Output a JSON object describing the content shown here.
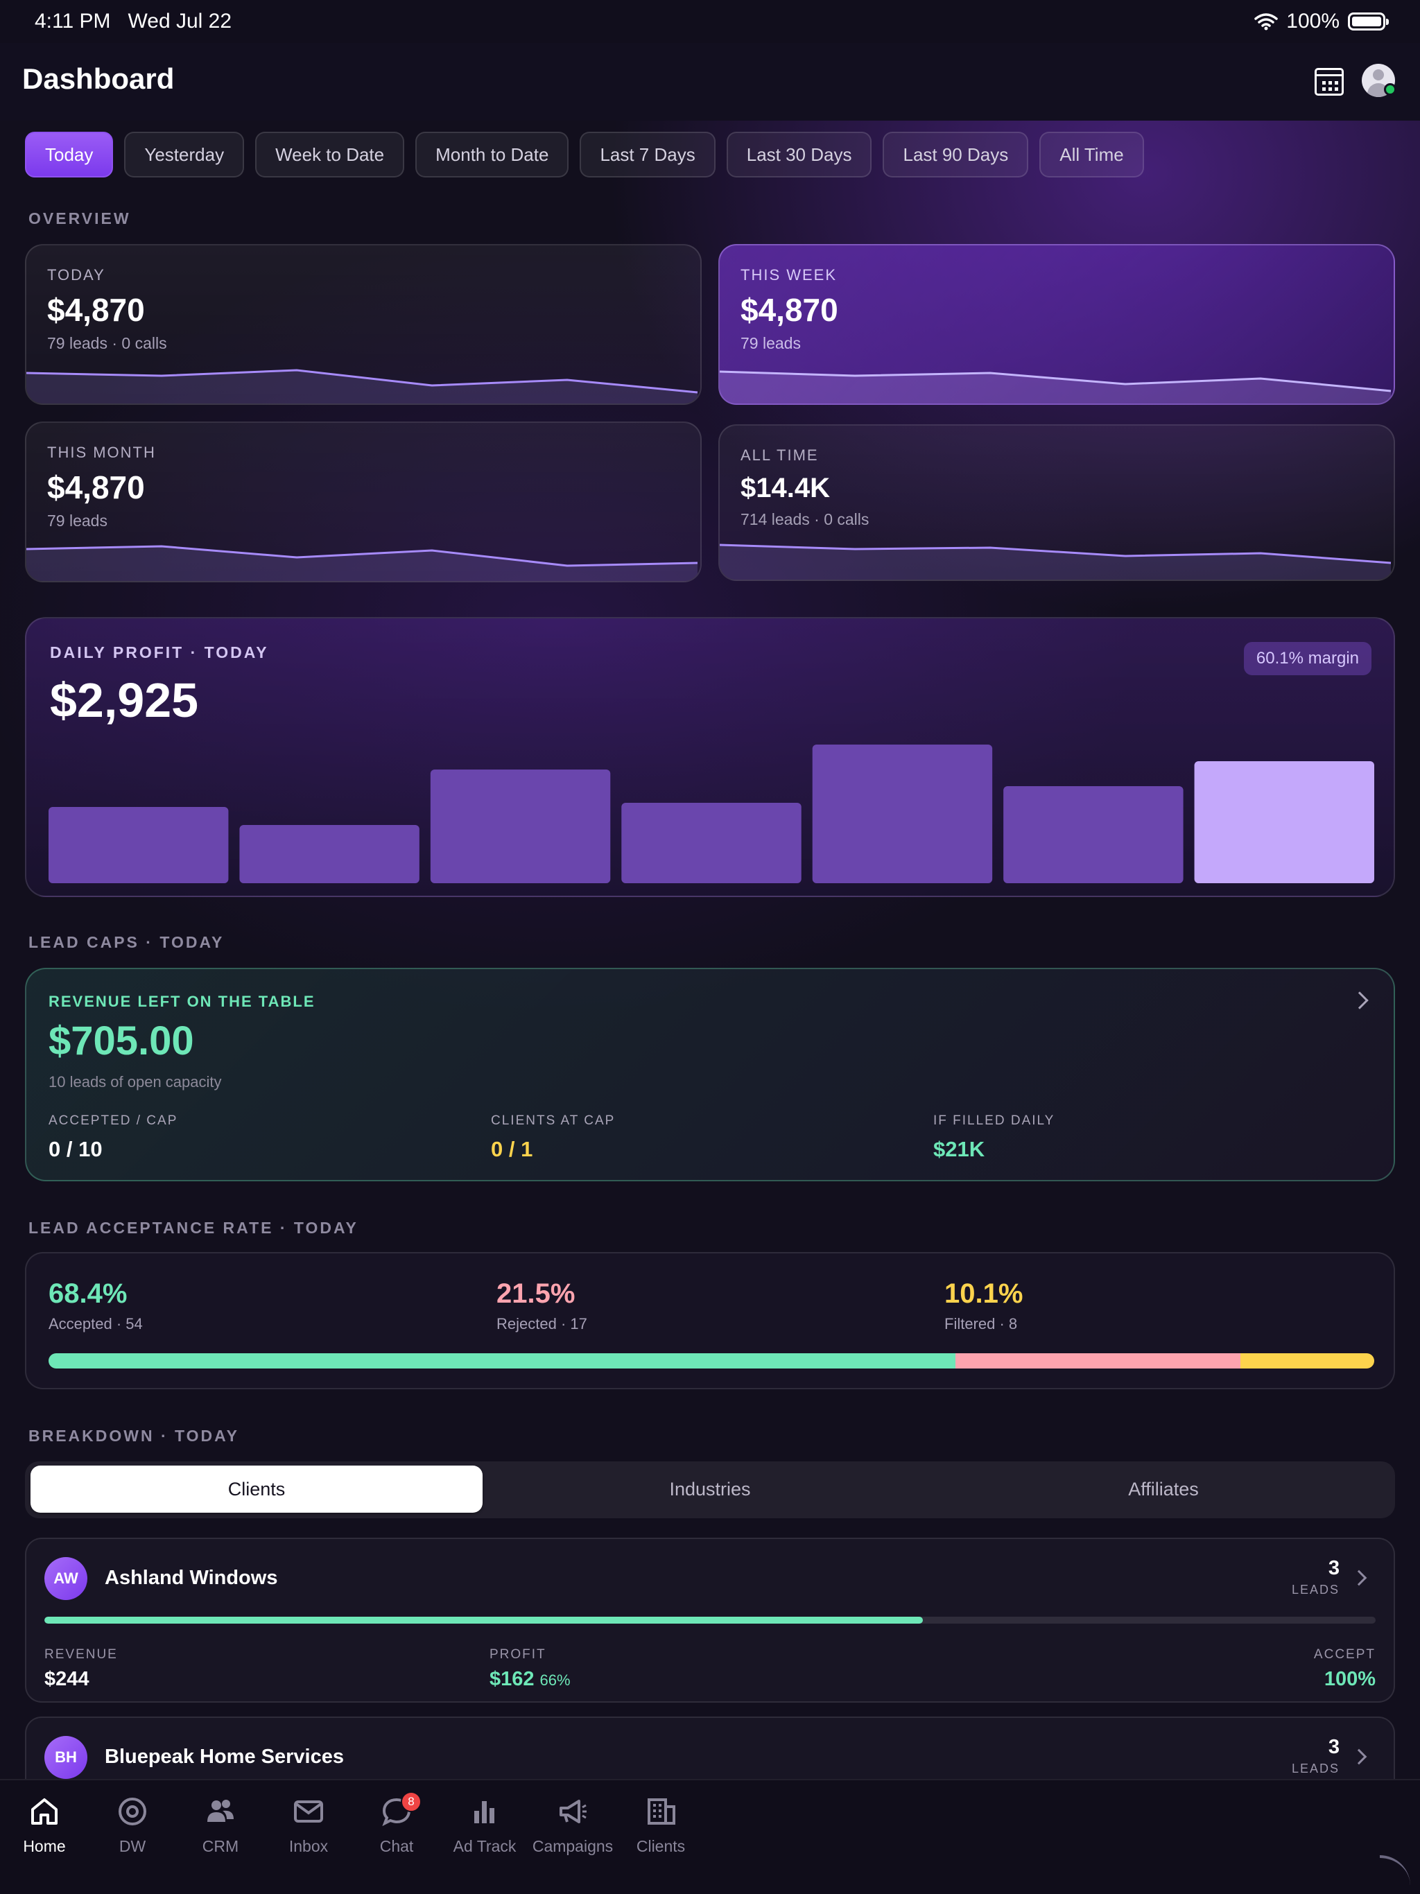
{
  "status_bar": {
    "time": "4:11 PM",
    "date": "Wed Jul 22",
    "battery": "100%"
  },
  "header": {
    "title": "Dashboard"
  },
  "filters": [
    {
      "label": "Today",
      "active": true
    },
    {
      "label": "Yesterday"
    },
    {
      "label": "Week to Date"
    },
    {
      "label": "Month to Date"
    },
    {
      "label": "Last 7 Days"
    },
    {
      "label": "Last 30 Days"
    },
    {
      "label": "Last 90 Days"
    },
    {
      "label": "All Time"
    }
  ],
  "overview": {
    "label": "OVERVIEW",
    "cards": [
      {
        "label": "TODAY",
        "value": "$4,870",
        "sub": "79 leads · 0 calls"
      },
      {
        "label": "THIS WEEK",
        "value": "$4,870",
        "sub": "79 leads"
      },
      {
        "label": "THIS MONTH",
        "value": "$4,870",
        "sub": "79 leads"
      },
      {
        "label": "ALL TIME",
        "value": "$14.4K",
        "sub": "714 leads · 0 calls"
      }
    ]
  },
  "profit": {
    "label": "DAILY PROFIT · TODAY",
    "value": "$2,925",
    "badge": "60.1% margin",
    "bars": [
      0.55,
      0.42,
      0.82,
      0.58,
      1.0,
      0.7,
      0.88
    ]
  },
  "lead_caps": {
    "section": "LEAD CAPS · TODAY",
    "label": "REVENUE LEFT ON THE TABLE",
    "value": "$705.00",
    "sub": "10 leads of open capacity",
    "stats": [
      {
        "label": "ACCEPTED / CAP",
        "value": "0 / 10"
      },
      {
        "label": "CLIENTS AT CAP",
        "value": "0 / 1"
      },
      {
        "label": "IF FILLED DAILY",
        "value": "$21K"
      }
    ]
  },
  "acceptance": {
    "section": "LEAD ACCEPTANCE RATE · TODAY",
    "items": [
      {
        "pct": "68.4%",
        "caption": "Accepted · 54",
        "share": 68.4
      },
      {
        "pct": "21.5%",
        "caption": "Rejected · 17",
        "share": 21.5
      },
      {
        "pct": "10.1%",
        "caption": "Filtered · 8",
        "share": 10.1
      }
    ]
  },
  "breakdown": {
    "section": "BREAKDOWN · TODAY",
    "tabs": [
      "Clients",
      "Industries",
      "Affiliates"
    ],
    "clients": [
      {
        "initials": "AW",
        "name": "Ashland Windows",
        "leads": "3",
        "leads_label": "LEADS",
        "revenue_label": "REVENUE",
        "revenue": "$244",
        "profit_label": "PROFIT",
        "profit": "$162",
        "profit_pct": "66%",
        "accept_label": "ACCEPT",
        "accept": "100%",
        "progress": 0.66
      },
      {
        "initials": "BH",
        "name": "Bluepeak Home Services",
        "leads": "3",
        "leads_label": "LEADS"
      }
    ]
  },
  "tab_bar": [
    {
      "label": "Home",
      "icon": "home-icon",
      "active": true
    },
    {
      "label": "DW",
      "icon": "at-sign-icon"
    },
    {
      "label": "CRM",
      "icon": "people-icon"
    },
    {
      "label": "Inbox",
      "icon": "envelope-icon"
    },
    {
      "label": "Chat",
      "icon": "chat-bubble-icon",
      "badge": "8"
    },
    {
      "label": "Ad Track",
      "icon": "bar-chart-icon"
    },
    {
      "label": "Campaigns",
      "icon": "megaphone-icon"
    },
    {
      "label": "Clients",
      "icon": "building-icon"
    }
  ],
  "colors": {
    "accent": "#7c3aed",
    "accepted": "#6ee7b7",
    "rejected": "#fda4af",
    "filtered": "#fcd34d"
  }
}
